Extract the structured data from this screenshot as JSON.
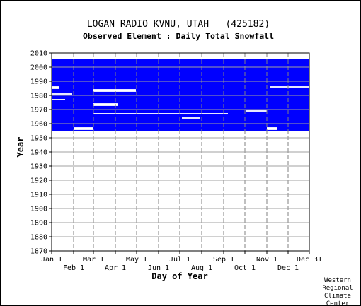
{
  "chart_data": {
    "type": "heatmap",
    "title": "LOGAN RADIO KVNU, UTAH   (425182)",
    "subtitle": "Observed Element : Daily Total Snowfall",
    "xlabel": "Day of Year",
    "ylabel": "Year",
    "xlim": [
      1,
      365
    ],
    "ylim": [
      1870,
      2010
    ],
    "x_ticks_top_row": [
      {
        "label": "Jan 1",
        "day": 1
      },
      {
        "label": "Mar 1",
        "day": 60
      },
      {
        "label": "May 1",
        "day": 121
      },
      {
        "label": "Jul 1",
        "day": 182
      },
      {
        "label": "Sep 1",
        "day": 244
      },
      {
        "label": "Nov 1",
        "day": 305
      },
      {
        "label": "Dec 31",
        "day": 365
      }
    ],
    "x_ticks_bottom_row": [
      {
        "label": "Feb 1",
        "day": 32
      },
      {
        "label": "Apr 1",
        "day": 91
      },
      {
        "label": "Jun 1",
        "day": 152
      },
      {
        "label": "Aug 1",
        "day": 213
      },
      {
        "label": "Oct 1",
        "day": 274
      },
      {
        "label": "Dec 1",
        "day": 335
      }
    ],
    "y_ticks": [
      1870,
      1880,
      1890,
      1900,
      1910,
      1920,
      1930,
      1940,
      1950,
      1960,
      1970,
      1980,
      1990,
      2000,
      2010
    ],
    "data_color": "#0000ff",
    "grid": true,
    "coverage": {
      "description": "blue = observation present",
      "main_block": {
        "year_start": 1955,
        "year_end": 2005,
        "day_start": 1,
        "day_end": 365
      },
      "gaps": [
        {
          "years": [
            1967,
            1967
          ],
          "days": [
            60,
            250
          ]
        },
        {
          "years": [
            1964,
            1964
          ],
          "days": [
            185,
            210
          ]
        },
        {
          "years": [
            1973,
            1974
          ],
          "days": [
            60,
            95
          ]
        },
        {
          "years": [
            1983,
            1984
          ],
          "days": [
            60,
            120
          ]
        },
        {
          "years": [
            1985,
            1986
          ],
          "days": [
            1,
            12
          ]
        },
        {
          "years": [
            1977,
            1977
          ],
          "days": [
            1,
            20
          ]
        },
        {
          "years": [
            1981,
            1981
          ],
          "days": [
            1,
            30
          ]
        },
        {
          "years": [
            1969,
            1969
          ],
          "days": [
            275,
            305
          ]
        },
        {
          "years": [
            1986,
            1986
          ],
          "days": [
            310,
            365
          ]
        },
        {
          "years": [
            1956,
            1957
          ],
          "days": [
            32,
            60
          ]
        },
        {
          "years": [
            1956,
            1957
          ],
          "days": [
            305,
            320
          ]
        }
      ]
    }
  },
  "credit": [
    "Western",
    "Regional",
    "Climate",
    "Center"
  ]
}
